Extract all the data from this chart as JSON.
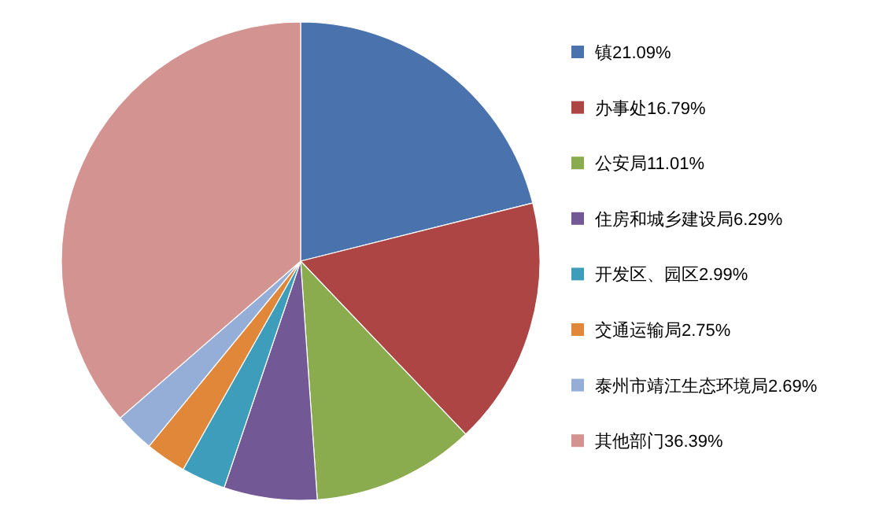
{
  "chart_data": {
    "type": "pie",
    "categories": [
      "镇21.09%",
      "办事处16.79%",
      "公安局11.01%",
      "住房和城乡建设局6.29%",
      "开发区、园区2.99%",
      "交通运输局2.75%",
      "泰州市靖江生态环境局2.69%",
      "其他部门36.39%"
    ],
    "values": [
      21.09,
      16.79,
      11.01,
      6.29,
      2.99,
      2.75,
      2.69,
      36.39
    ],
    "colors": [
      "#4a73ad",
      "#ac4543",
      "#8aab4e",
      "#735896",
      "#3e9dba",
      "#e0873a",
      "#95aed8",
      "#d39391"
    ],
    "legend": "right"
  }
}
